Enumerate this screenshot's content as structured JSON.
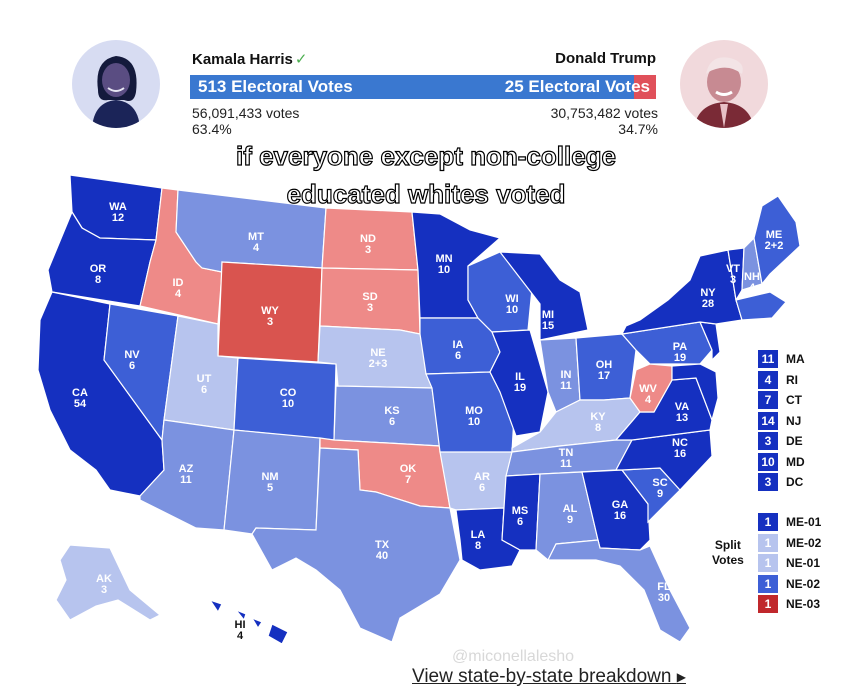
{
  "harris": {
    "name": "Kamala Harris",
    "check_icon": "✓",
    "electoral_votes": "513 Electoral Votes",
    "popular_votes": "56,091,433 votes",
    "percent": "63.4%",
    "bar_fraction": 0.953
  },
  "trump": {
    "name": "Donald Trump",
    "electoral_votes": "25 Electoral Votes",
    "popular_votes": "30,753,482 votes",
    "percent": "34.7%",
    "bar_fraction": 0.047
  },
  "caption": {
    "line1": "if everyone except non-college",
    "line2": "educated whites voted"
  },
  "colors": {
    "dark_blue": "#1530c0",
    "mid_blue": "#3d5fd6",
    "light_blue": "#7b92e0",
    "pale_blue": "#b7c4ee",
    "light_red": "#ee8a88",
    "dark_red": "#d9544f"
  },
  "states": {
    "WA": {
      "name": "WA",
      "ev": "12"
    },
    "OR": {
      "name": "OR",
      "ev": "8"
    },
    "CA": {
      "name": "CA",
      "ev": "54"
    },
    "NV": {
      "name": "NV",
      "ev": "6"
    },
    "ID": {
      "name": "ID",
      "ev": "4"
    },
    "MT": {
      "name": "MT",
      "ev": "4"
    },
    "WY": {
      "name": "WY",
      "ev": "3"
    },
    "UT": {
      "name": "UT",
      "ev": "6"
    },
    "CO": {
      "name": "CO",
      "ev": "10"
    },
    "AZ": {
      "name": "AZ",
      "ev": "11"
    },
    "NM": {
      "name": "NM",
      "ev": "5"
    },
    "ND": {
      "name": "ND",
      "ev": "3"
    },
    "SD": {
      "name": "SD",
      "ev": "3"
    },
    "NE": {
      "name": "NE",
      "ev": "2+3"
    },
    "KS": {
      "name": "KS",
      "ev": "6"
    },
    "OK": {
      "name": "OK",
      "ev": "7"
    },
    "TX": {
      "name": "TX",
      "ev": "40"
    },
    "MN": {
      "name": "MN",
      "ev": "10"
    },
    "IA": {
      "name": "IA",
      "ev": "6"
    },
    "MO": {
      "name": "MO",
      "ev": "10"
    },
    "AR": {
      "name": "AR",
      "ev": "6"
    },
    "LA": {
      "name": "LA",
      "ev": "8"
    },
    "WI": {
      "name": "WI",
      "ev": "10"
    },
    "IL": {
      "name": "IL",
      "ev": "19"
    },
    "MI": {
      "name": "MI",
      "ev": "15"
    },
    "IN": {
      "name": "IN",
      "ev": "11"
    },
    "OH": {
      "name": "OH",
      "ev": "17"
    },
    "KY": {
      "name": "KY",
      "ev": "8"
    },
    "TN": {
      "name": "TN",
      "ev": "11"
    },
    "MS": {
      "name": "MS",
      "ev": "6"
    },
    "AL": {
      "name": "AL",
      "ev": "9"
    },
    "GA": {
      "name": "GA",
      "ev": "16"
    },
    "FL": {
      "name": "FL",
      "ev": "30"
    },
    "SC": {
      "name": "SC",
      "ev": "9"
    },
    "NC": {
      "name": "NC",
      "ev": "16"
    },
    "VA": {
      "name": "VA",
      "ev": "13"
    },
    "WV": {
      "name": "WV",
      "ev": "4"
    },
    "PA": {
      "name": "PA",
      "ev": "19"
    },
    "NY": {
      "name": "NY",
      "ev": "28"
    },
    "VT": {
      "name": "VT",
      "ev": "3"
    },
    "NH": {
      "name": "NH",
      "ev": "4"
    },
    "ME": {
      "name": "ME",
      "ev": "2+2"
    },
    "AK": {
      "name": "AK",
      "ev": "3"
    },
    "HI": {
      "name": "HI",
      "ev": "4"
    }
  },
  "small_states": [
    {
      "ev": "11",
      "name": "MA"
    },
    {
      "ev": "4",
      "name": "RI"
    },
    {
      "ev": "7",
      "name": "CT"
    },
    {
      "ev": "14",
      "name": "NJ"
    },
    {
      "ev": "3",
      "name": "DE"
    },
    {
      "ev": "10",
      "name": "MD"
    },
    {
      "ev": "3",
      "name": "DC"
    }
  ],
  "split_votes": {
    "title_line1": "Split",
    "title_line2": "Votes",
    "items": [
      {
        "ev": "1",
        "name": "ME-01",
        "color": "#1530c0"
      },
      {
        "ev": "1",
        "name": "ME-02",
        "color": "#b7c4ee"
      },
      {
        "ev": "1",
        "name": "NE-01",
        "color": "#b7c4ee"
      },
      {
        "ev": "1",
        "name": "NE-02",
        "color": "#3d5fd6"
      },
      {
        "ev": "1",
        "name": "NE-03",
        "color": "#c0282c"
      }
    ]
  },
  "footer": {
    "link_text": "View state-by-state breakdown",
    "arrow": "▶",
    "watermark": "@miconellalesho"
  }
}
